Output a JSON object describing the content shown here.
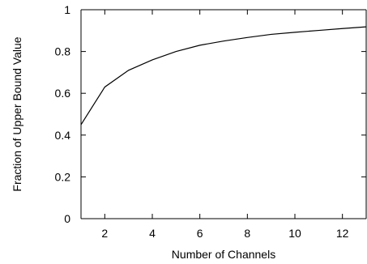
{
  "chart_data": {
    "type": "line",
    "title": "",
    "xlabel": "Number of Channels",
    "ylabel": "Fraction of Upper Bound Value",
    "xlim": [
      1,
      13
    ],
    "ylim": [
      0,
      1
    ],
    "xticks": [
      2,
      4,
      6,
      8,
      10,
      12
    ],
    "xtick_labels": [
      "2",
      "4",
      "6",
      "8",
      "10",
      "12"
    ],
    "yticks": [
      0,
      0.2,
      0.4,
      0.6,
      0.8,
      1
    ],
    "ytick_labels": [
      "0",
      "0.2",
      "0.4",
      "0.6",
      "0.8",
      "1"
    ],
    "grid": false,
    "legend": "none",
    "series": [
      {
        "x": [
          1,
          2,
          3,
          4,
          5,
          6,
          7,
          8,
          9,
          10,
          11,
          12,
          13
        ],
        "y": [
          0.45,
          0.63,
          0.71,
          0.76,
          0.8,
          0.83,
          0.85,
          0.867,
          0.882,
          0.892,
          0.901,
          0.91,
          0.918
        ]
      }
    ]
  }
}
